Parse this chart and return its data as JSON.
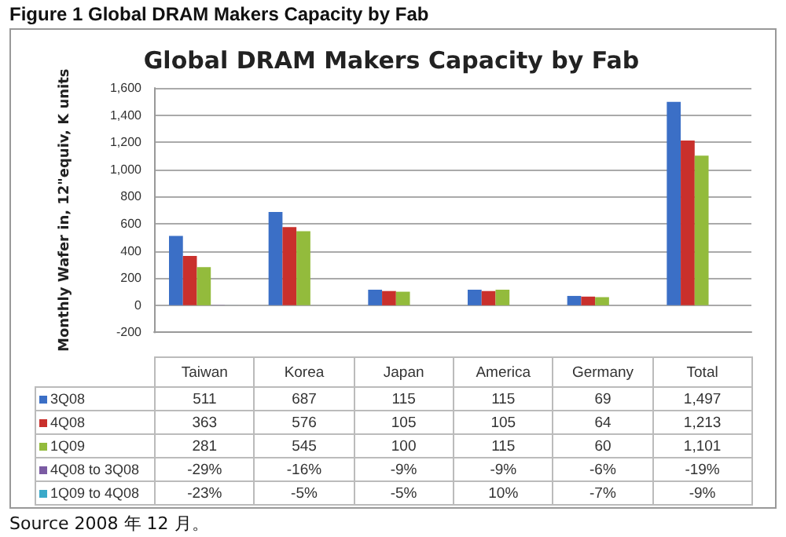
{
  "chart_data": {
    "type": "bar",
    "title": "Figure 1 Global DRAM Makers Capacity by Fab",
    "subtitle": "Global DRAM Makers Capacity by Fab",
    "ylabel": "Monthly Wafer in, 12\"equiv, K units",
    "categories": [
      "Taiwan",
      "Korea",
      "Japan",
      "America",
      "Germany",
      "Total"
    ],
    "series": [
      {
        "name": "3Q08",
        "color": "#3b6fc6",
        "values": [
          511,
          687,
          115,
          115,
          69,
          1497
        ],
        "value_labels": [
          "511",
          "687",
          "115",
          "115",
          "69",
          "1,497"
        ]
      },
      {
        "name": "4Q08",
        "color": "#c9302c",
        "values": [
          363,
          576,
          105,
          105,
          64,
          1213
        ],
        "value_labels": [
          "363",
          "576",
          "105",
          "105",
          "64",
          "1,213"
        ]
      },
      {
        "name": "1Q09",
        "color": "#93bb3c",
        "values": [
          281,
          545,
          100,
          115,
          60,
          1101
        ],
        "value_labels": [
          "281",
          "545",
          "100",
          "115",
          "60",
          "1,101"
        ]
      },
      {
        "name": "4Q08 to 3Q08",
        "color": "#7b5ba3",
        "values": [
          -0.29,
          -0.16,
          -0.09,
          -0.09,
          -0.06,
          -0.19
        ],
        "value_labels": [
          "-29%",
          "-16%",
          "-9%",
          "-9%",
          "-6%",
          "-19%"
        ]
      },
      {
        "name": "1Q09 to 4Q08",
        "color": "#3aa9c9",
        "values": [
          -0.23,
          -0.05,
          -0.05,
          0.1,
          -0.07,
          -0.09
        ],
        "value_labels": [
          "-23%",
          "-5%",
          "-5%",
          "10%",
          "-7%",
          "-9%"
        ]
      }
    ],
    "ylim": [
      -200,
      1600
    ],
    "yticks": [
      -200,
      0,
      200,
      400,
      600,
      800,
      {
        "value": 1000,
        "label": "1,000"
      },
      {
        "value": 1200,
        "label": "1,200"
      },
      {
        "value": 1400,
        "label": "1,400"
      },
      {
        "value": 1600,
        "label": "1,600"
      }
    ],
    "grid": "y",
    "legend": "bottom",
    "annotations": [
      "Source 2008 年 12 月。"
    ]
  }
}
